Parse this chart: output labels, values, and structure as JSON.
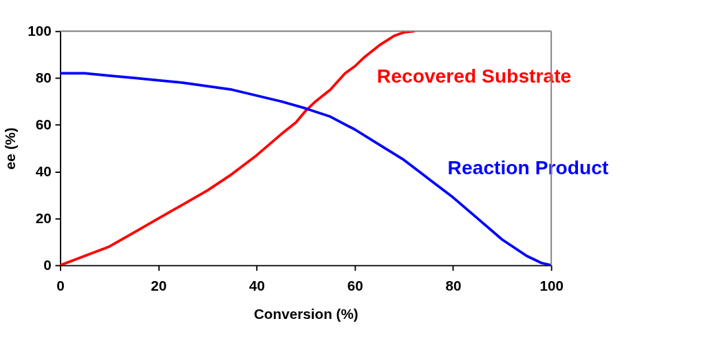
{
  "chart_data": {
    "type": "line",
    "xlabel": "Conversion (%)",
    "ylabel": "ee (%)",
    "xlim": [
      0,
      100
    ],
    "ylim": [
      0,
      100
    ],
    "xticks": [
      0,
      20,
      40,
      60,
      80,
      100
    ],
    "yticks": [
      0,
      20,
      40,
      60,
      80,
      100
    ],
    "marker": "none",
    "line_style": "solid",
    "series": [
      {
        "name": "Recovered Substrate",
        "color": "#ff0000",
        "x": [
          0,
          5,
          10,
          15,
          20,
          25,
          30,
          35,
          40,
          45,
          48,
          50,
          52,
          55,
          58,
          60,
          62,
          65,
          68,
          70,
          72
        ],
        "values": [
          0,
          4,
          8,
          14,
          20,
          26,
          32,
          39,
          47,
          56,
          61,
          66,
          70,
          75,
          82,
          85,
          89,
          94,
          98,
          99.5,
          100
        ]
      },
      {
        "name": "Reaction Product",
        "color": "#0000ff",
        "x": [
          0,
          5,
          10,
          15,
          20,
          25,
          30,
          35,
          40,
          45,
          50,
          55,
          60,
          65,
          70,
          75,
          80,
          85,
          90,
          95,
          98,
          100
        ],
        "values": [
          82,
          82,
          81,
          80,
          79,
          78,
          76.5,
          75,
          72.5,
          70,
          67,
          63.5,
          58,
          51.5,
          45,
          37,
          29,
          20,
          11,
          4,
          1,
          0
        ]
      }
    ]
  }
}
